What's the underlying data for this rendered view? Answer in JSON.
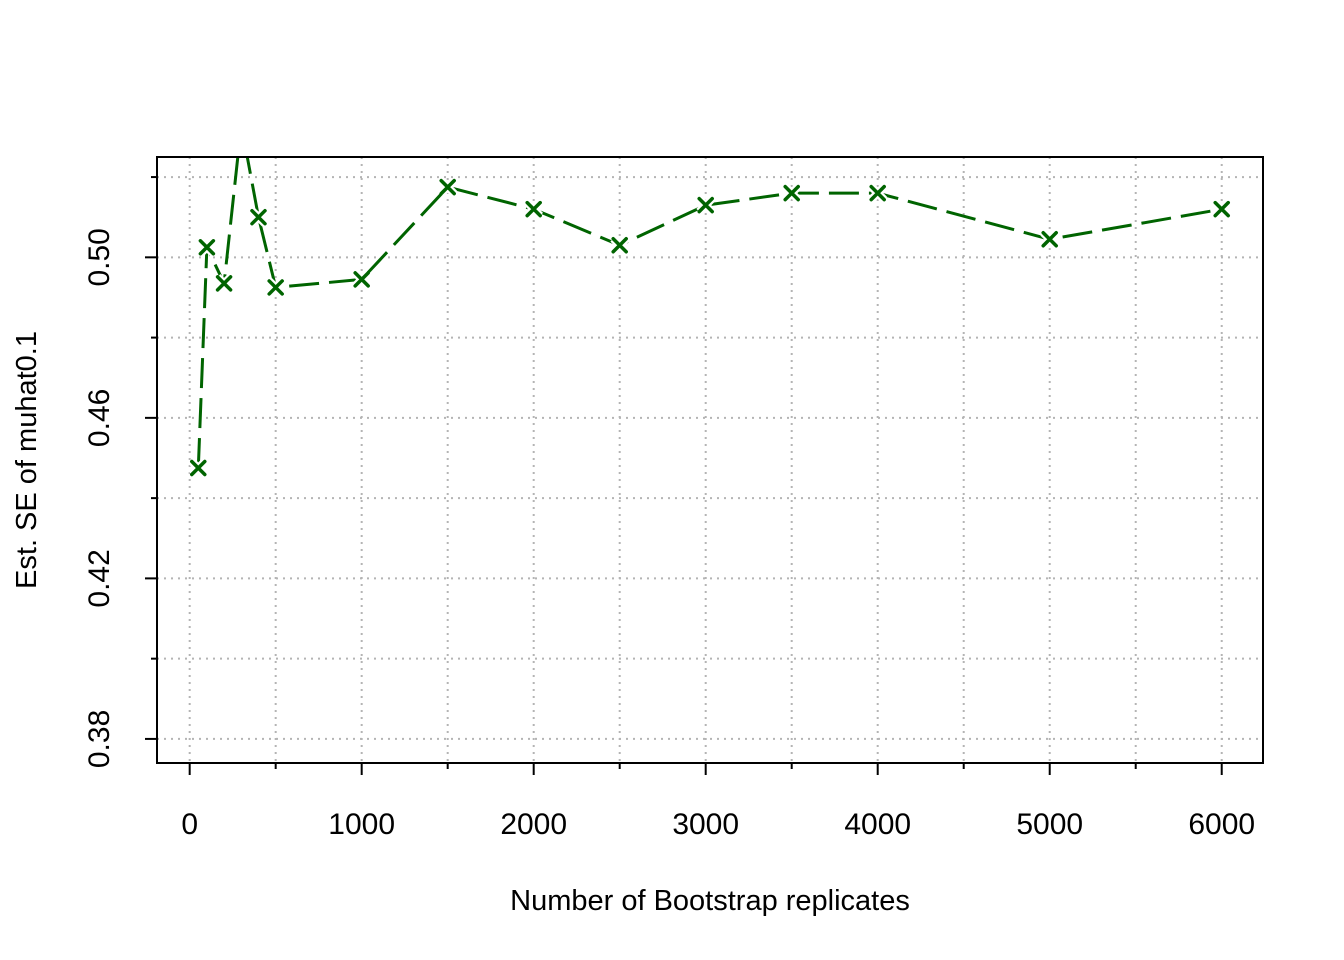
{
  "chart_data": {
    "type": "line",
    "title": "",
    "xlabel": "Number of Bootstrap replicates",
    "ylabel": "Est. SE of muhat0.1",
    "x_ticks": [
      0,
      1000,
      2000,
      3000,
      4000,
      5000,
      6000
    ],
    "x_tick_labels": [
      "0",
      "1000",
      "2000",
      "3000",
      "4000",
      "5000",
      "6000"
    ],
    "y_ticks": [
      0.38,
      0.42,
      0.46,
      0.5
    ],
    "y_tick_labels": [
      "0.38",
      "0.42",
      "0.46",
      "0.50"
    ],
    "xlim": [
      -190,
      6240
    ],
    "ylim": [
      0.374,
      0.525
    ],
    "grid": true,
    "series": [
      {
        "x": [
          50,
          100,
          200,
          300,
          400,
          500,
          1000,
          1500,
          2000,
          2500,
          3000,
          3500,
          4000,
          5000,
          6000
        ],
        "y": [
          0.4475,
          0.5025,
          0.4935,
          0.533,
          0.51,
          0.4925,
          0.4945,
          0.5175,
          0.512,
          0.503,
          0.513,
          0.516,
          0.516,
          0.5045,
          0.512
        ],
        "color": "#006400",
        "marker": "x",
        "line_style": "dashed"
      }
    ]
  }
}
